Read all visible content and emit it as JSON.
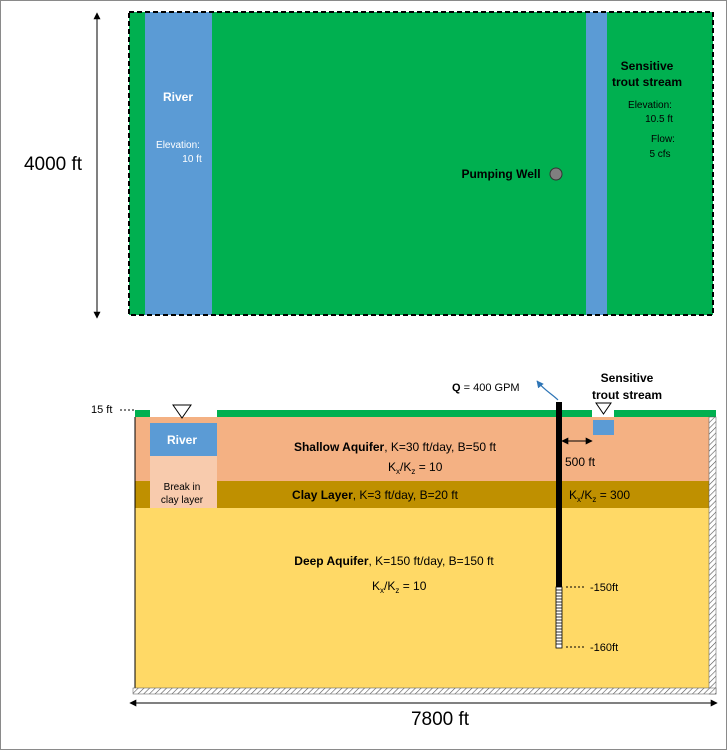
{
  "plan_view": {
    "height_label": "4000 ft",
    "river": {
      "title": "River",
      "elevation_label": "Elevation:",
      "elevation_value": "10 ft"
    },
    "stream": {
      "title_line1": "Sensitive",
      "title_line2": "trout stream",
      "elevation_label": "Elevation:",
      "elevation_value": "10.5 ft",
      "flow_label": "Flow:",
      "flow_value": "5 cfs"
    },
    "well_label": "Pumping Well"
  },
  "cross_section": {
    "elevation_marker": "15 ft",
    "river_label": "River",
    "break_line1": "Break in",
    "break_line2": "clay layer",
    "pump_q": "Q",
    "pump_rate": "= 400 GPM",
    "stream_line1": "Sensitive",
    "stream_line2": "trout stream",
    "distance_label": "500 ft",
    "shallow": {
      "name": "Shallow Aquifer",
      "props": ", K=30 ft/day, B=50 ft",
      "ratio": "10"
    },
    "clay": {
      "name": "Clay Layer",
      "props": ", K=3 ft/day, B=20 ft",
      "ratio": "300"
    },
    "deep": {
      "name": "Deep Aquifer",
      "props": ", K=150 ft/day, B=150 ft",
      "ratio": "10"
    },
    "depth_top": "-150ft",
    "depth_bottom": "-160ft",
    "width_label": "7800 ft"
  },
  "colors": {
    "green": "#00B050",
    "blue": "#5B9BD5",
    "shallow": "#F4B183",
    "clay": "#BF9000",
    "deep": "#FFD966",
    "break": "#F8CBAD"
  }
}
